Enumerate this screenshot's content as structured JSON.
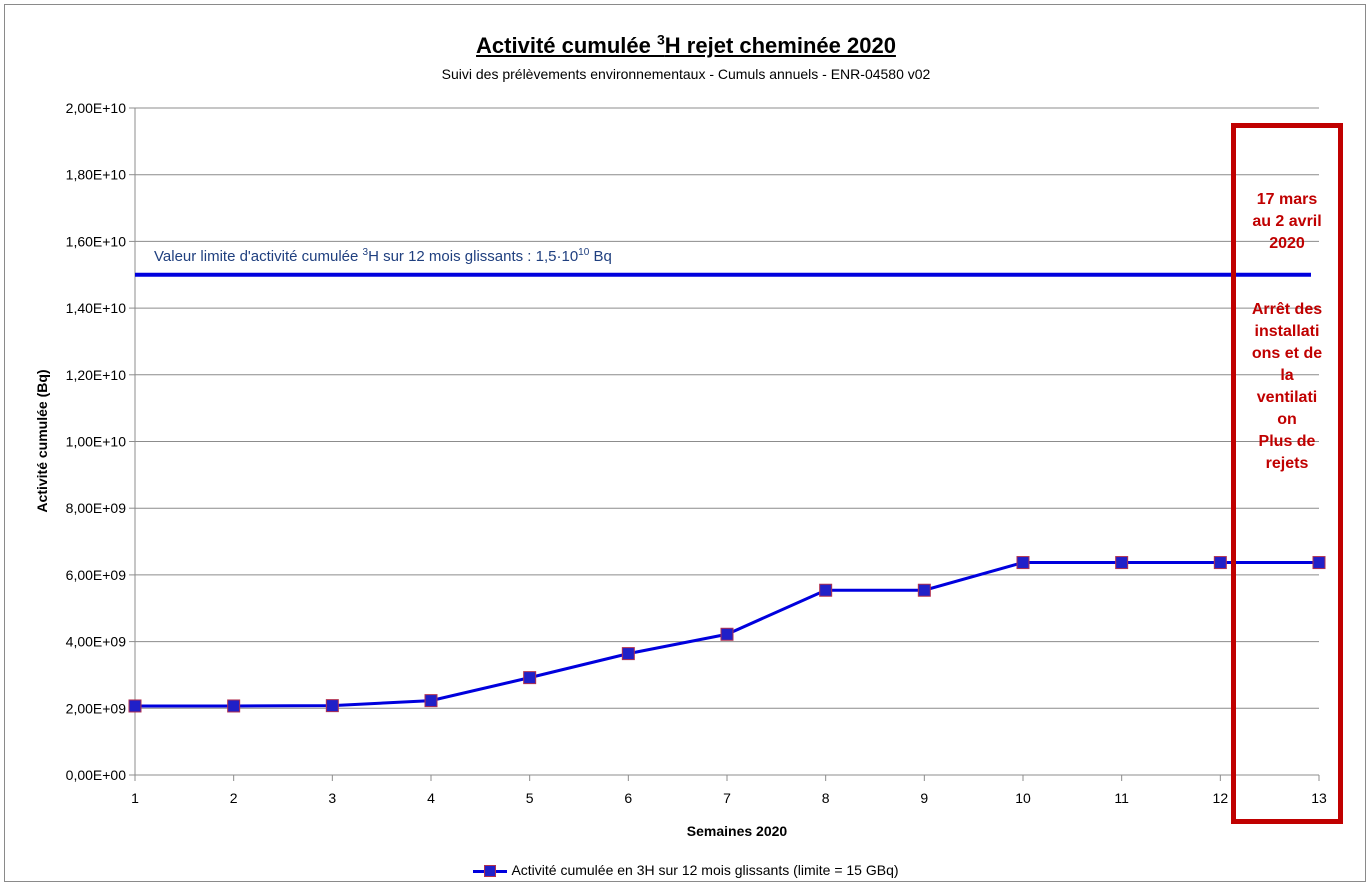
{
  "chart_data": {
    "type": "line",
    "title_main": "Activité cumulée ",
    "title_sup": "3",
    "title_rest": "H rejet cheminée 2020",
    "subtitle": "Suivi des prélèvements environnementaux - Cumuls annuels - ENR-04580 v02",
    "xlabel": "Semaines 2020",
    "ylabel": "Activité cumulée (Bq)",
    "x": [
      1,
      2,
      3,
      4,
      5,
      6,
      7,
      8,
      9,
      10,
      11,
      12,
      13
    ],
    "ylim": [
      0,
      20000000000
    ],
    "xlim": [
      1,
      13
    ],
    "y_ticks": [
      0,
      2000000000,
      4000000000,
      6000000000,
      8000000000,
      10000000000,
      12000000000,
      14000000000,
      16000000000,
      18000000000,
      20000000000
    ],
    "y_tick_labels": [
      "0,00E+00",
      "2,00E+09",
      "4,00E+09",
      "6,00E+09",
      "8,00E+09",
      "1,00E+10",
      "1,20E+10",
      "1,40E+10",
      "1,60E+10",
      "1,80E+10",
      "2,00E+10"
    ],
    "x_tick_labels": [
      "1",
      "2",
      "3",
      "4",
      "5",
      "6",
      "7",
      "8",
      "9",
      "10",
      "11",
      "12",
      "13"
    ],
    "grid": true,
    "series": [
      {
        "name": "Activité cumulée en 3H sur 12 mois glissants (limite = 15 GBq)",
        "color": "#0000dd",
        "marker_color": "#2020c8",
        "values": [
          2070000000,
          2070000000,
          2080000000,
          2230000000,
          2920000000,
          3640000000,
          4220000000,
          5540000000,
          5540000000,
          6370000000,
          6370000000,
          6370000000,
          6370000000
        ]
      }
    ],
    "limit_line": {
      "value": 15000000000,
      "color": "#0000dd",
      "label_pre": "Valeur limite d'activité cumulée ",
      "label_sup1": "3",
      "label_mid": "H sur 12 mois  glissants : 1,5·10",
      "label_sup2": "10",
      "label_post": " Bq"
    },
    "annotation": {
      "color": "#c00000",
      "lines_top": [
        "17 mars",
        "au 2 avril",
        "2020"
      ],
      "lines_bottom": [
        "Arrêt des",
        "installati",
        "ons et de",
        "la",
        "ventilati",
        "on",
        "Plus de",
        "rejets"
      ]
    },
    "legend_position": "bottom"
  }
}
